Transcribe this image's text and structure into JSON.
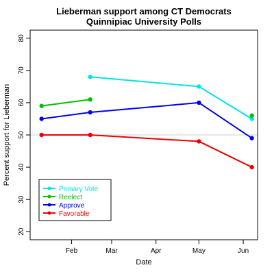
{
  "chart_data": {
    "type": "line",
    "title": [
      "Lieberman support among CT Democrats",
      "Quinnipiac University Polls"
    ],
    "xlabel": "Date",
    "ylabel": "Percent support for Lieberman",
    "x_ticks": [
      {
        "date": "2006-02-01",
        "label": "Feb"
      },
      {
        "date": "2006-03-01",
        "label": "Mar"
      },
      {
        "date": "2006-04-01",
        "label": "Apr"
      },
      {
        "date": "2006-05-01",
        "label": "May"
      },
      {
        "date": "2006-06-01",
        "label": "Jun"
      }
    ],
    "xlim": [
      "2006-01-03",
      "2006-06-11"
    ],
    "y_ticks": [
      20,
      30,
      40,
      50,
      60,
      70,
      80
    ],
    "ylim": [
      17.5,
      82.5
    ],
    "reference_line": {
      "y": 50,
      "color": "#cccccc"
    },
    "legend_position": "bottom-left",
    "series": [
      {
        "name": "Primary Vote",
        "color": "#00e5e5",
        "points": [
          {
            "x": "2006-02-14",
            "y": 68
          },
          {
            "x": "2006-05-01",
            "y": 65
          },
          {
            "x": "2006-06-07",
            "y": 55
          }
        ]
      },
      {
        "name": "Reelect",
        "color": "#00c000",
        "points": [
          {
            "x": "2006-01-11",
            "y": 59
          },
          {
            "x": "2006-02-14",
            "y": 61
          }
        ],
        "extra_points": [
          {
            "x": "2006-06-07",
            "y": 56
          }
        ]
      },
      {
        "name": "Approve",
        "color": "#0000ee",
        "points": [
          {
            "x": "2006-01-11",
            "y": 55
          },
          {
            "x": "2006-02-14",
            "y": 57
          },
          {
            "x": "2006-05-01",
            "y": 60
          },
          {
            "x": "2006-06-07",
            "y": 49
          }
        ]
      },
      {
        "name": "Favorable",
        "color": "#ee0000",
        "points": [
          {
            "x": "2006-01-11",
            "y": 50
          },
          {
            "x": "2006-02-14",
            "y": 50
          },
          {
            "x": "2006-05-01",
            "y": 48
          },
          {
            "x": "2006-06-07",
            "y": 40
          }
        ]
      }
    ]
  }
}
